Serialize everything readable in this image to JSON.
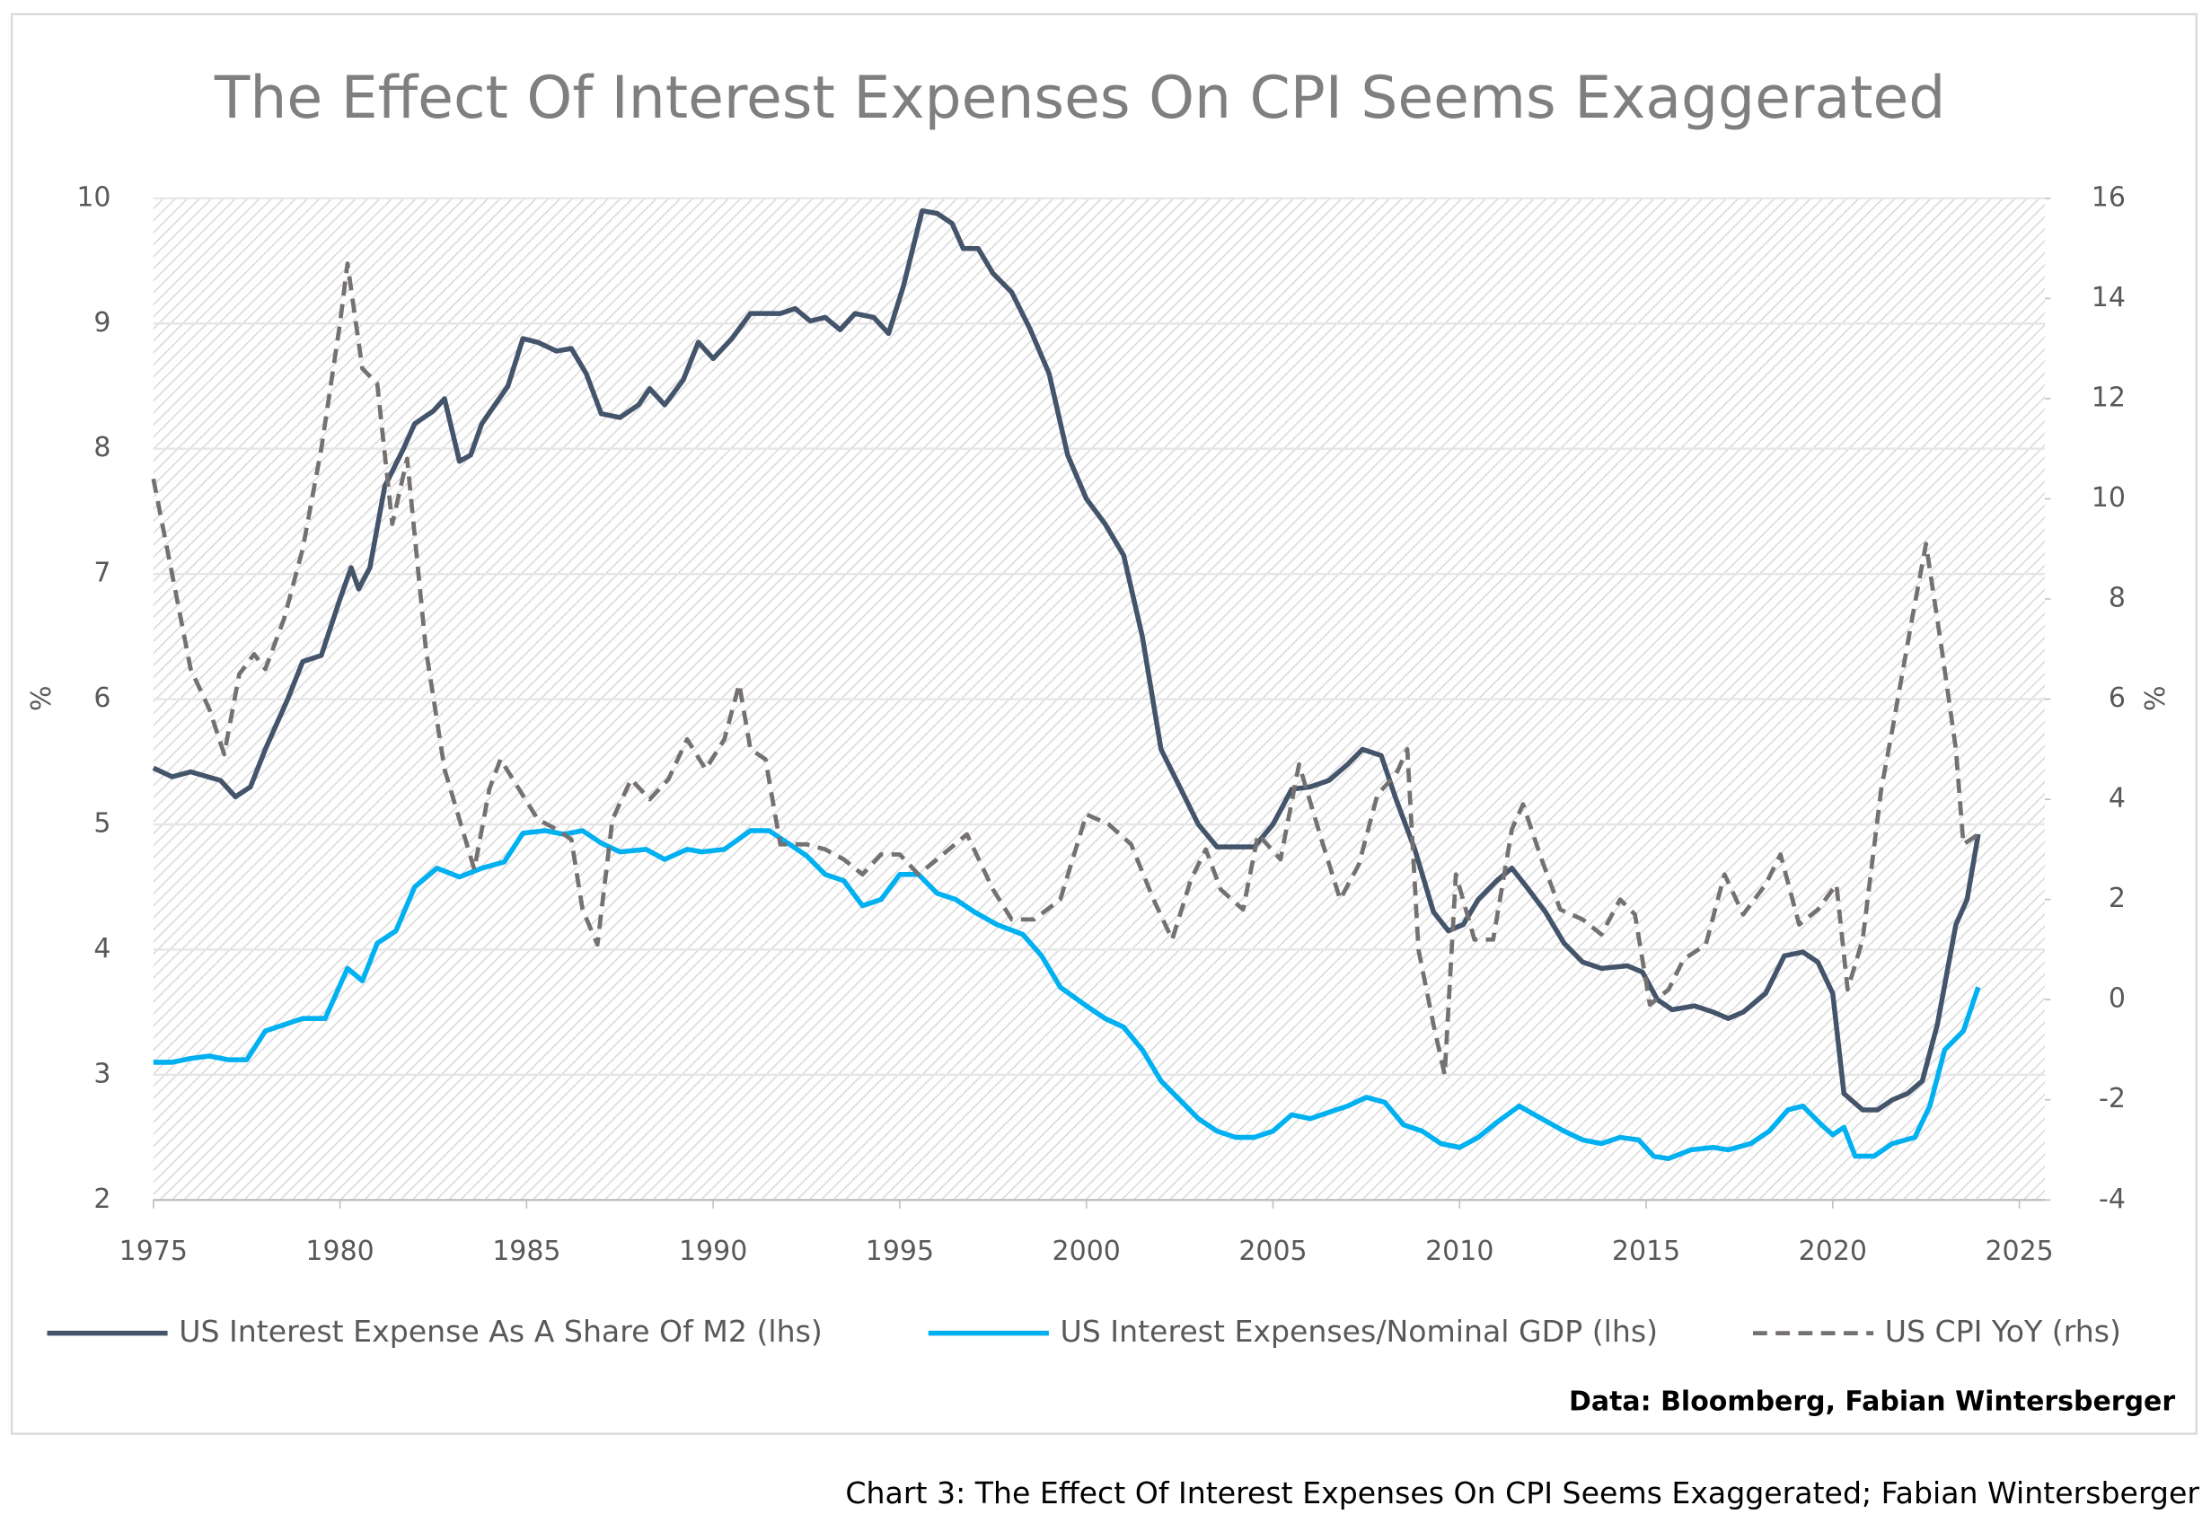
{
  "chart_data": {
    "type": "line",
    "title": "The Effect Of Interest Expenses On CPI Seems Exaggerated",
    "ylabel": "%",
    "y2label": "%",
    "source": "Data: Bloomberg, Fabian Wintersberger",
    "caption": "Chart 3: The Effect Of Interest Expenses On CPI Seems Exaggerated; Fabian Wintersberger",
    "xlim": [
      1975,
      2025
    ],
    "xticks": [
      1975,
      1980,
      1985,
      1990,
      1995,
      2000,
      2005,
      2010,
      2015,
      2020,
      2025
    ],
    "ylim": [
      2,
      10
    ],
    "yticks": [
      2,
      3,
      4,
      5,
      6,
      7,
      8,
      9,
      10
    ],
    "y2lim": [
      -4,
      16
    ],
    "y2ticks": [
      -4,
      -2,
      0,
      2,
      4,
      6,
      8,
      10,
      12,
      14,
      16
    ],
    "grid": true,
    "legend": "bottom",
    "series": [
      {
        "name": "US Interest Expense As A Share Of M2 (lhs)",
        "color": "#44546a",
        "dash": false,
        "x": [
          1975,
          1975.5,
          1976,
          1976.8,
          1977.2,
          1977.6,
          1978,
          1978.6,
          1979,
          1979.5,
          1980,
          1980.3,
          1980.5,
          1980.8,
          1981.2,
          1981.7,
          1982,
          1982.5,
          1982.8,
          1983.2,
          1983.5,
          1983.8,
          1984.5,
          1984.9,
          1985.3,
          1985.8,
          1986.2,
          1986.6,
          1987,
          1987.5,
          1988,
          1988.3,
          1988.7,
          1989.2,
          1989.6,
          1990,
          1990.5,
          1991,
          1991.8,
          1992.2,
          1992.6,
          1993,
          1993.4,
          1993.8,
          1994.3,
          1994.7,
          1995.1,
          1995.6,
          1996,
          1996.4,
          1996.7,
          1997.1,
          1997.5,
          1998,
          1998.5,
          1999,
          1999.5,
          2000,
          2000.5,
          2001,
          2001.5,
          2002,
          2002.5,
          2003,
          2003.5,
          2004,
          2004.5,
          2005,
          2005.5,
          2006,
          2006.5,
          2007,
          2007.4,
          2007.9,
          2008.3,
          2008.8,
          2009.3,
          2009.7,
          2010.1,
          2010.5,
          2011,
          2011.4,
          2011.8,
          2012.3,
          2012.8,
          2013.3,
          2013.8,
          2014.5,
          2014.9,
          2015.3,
          2015.7,
          2016.3,
          2016.8,
          2017.2,
          2017.6,
          2018.2,
          2018.7,
          2019.2,
          2019.6,
          2020,
          2020.3,
          2020.8,
          2021.2,
          2021.6,
          2022,
          2022.4,
          2022.8,
          2023.3,
          2023.6,
          2023.9
        ],
        "values": [
          5.45,
          5.38,
          5.42,
          5.35,
          5.22,
          5.3,
          5.6,
          6.0,
          6.3,
          6.35,
          6.8,
          7.05,
          6.88,
          7.05,
          7.7,
          8.0,
          8.2,
          8.3,
          8.4,
          7.9,
          7.95,
          8.2,
          8.5,
          8.88,
          8.85,
          8.78,
          8.8,
          8.6,
          8.28,
          8.25,
          8.35,
          8.48,
          8.35,
          8.55,
          8.85,
          8.72,
          8.88,
          9.08,
          9.08,
          9.12,
          9.02,
          9.05,
          8.95,
          9.08,
          9.05,
          8.92,
          9.3,
          9.9,
          9.88,
          9.8,
          9.6,
          9.6,
          9.4,
          9.25,
          8.95,
          8.6,
          7.95,
          7.6,
          7.4,
          7.15,
          6.5,
          5.6,
          5.3,
          5.0,
          4.82,
          4.82,
          4.82,
          5.0,
          5.28,
          5.3,
          5.35,
          5.48,
          5.6,
          5.55,
          5.2,
          4.8,
          4.3,
          4.15,
          4.2,
          4.4,
          4.55,
          4.65,
          4.5,
          4.3,
          4.05,
          3.9,
          3.85,
          3.87,
          3.82,
          3.6,
          3.52,
          3.55,
          3.5,
          3.45,
          3.5,
          3.65,
          3.95,
          3.98,
          3.9,
          3.65,
          2.85,
          2.72,
          2.72,
          2.8,
          2.85,
          2.95,
          3.4,
          4.2,
          4.4,
          4.92
        ]
      },
      {
        "name": "US Interest Expenses/Nominal GDP (lhs)",
        "color": "#00b0f0",
        "dash": false,
        "x": [
          1975,
          1975.5,
          1976,
          1976.5,
          1977,
          1977.5,
          1978,
          1978.5,
          1979,
          1979.6,
          1980.2,
          1980.6,
          1981,
          1981.5,
          1982,
          1982.6,
          1983.2,
          1983.8,
          1984.4,
          1984.9,
          1985.5,
          1986,
          1986.5,
          1987,
          1987.5,
          1988.2,
          1988.7,
          1989.3,
          1989.7,
          1990.3,
          1991,
          1991.5,
          1992,
          1992.5,
          1993,
          1993.5,
          1994,
          1994.5,
          1995,
          1995.5,
          1996,
          1996.5,
          1997,
          1997.6,
          1998.3,
          1998.8,
          1999.3,
          2000,
          2000.5,
          2001,
          2001.5,
          2002,
          2002.5,
          2003,
          2003.5,
          2004,
          2004.5,
          2005,
          2005.5,
          2006,
          2006.5,
          2007,
          2007.5,
          2008,
          2008.5,
          2009,
          2009.5,
          2010,
          2010.5,
          2011,
          2011.6,
          2012.2,
          2012.8,
          2013.3,
          2013.8,
          2014.3,
          2014.8,
          2015.2,
          2015.6,
          2016.2,
          2016.8,
          2017.2,
          2017.8,
          2018.3,
          2018.8,
          2019.2,
          2019.7,
          2020,
          2020.3,
          2020.6,
          2021.1,
          2021.6,
          2022.2,
          2022.6,
          2023,
          2023.5,
          2023.9
        ],
        "values": [
          3.1,
          3.1,
          3.13,
          3.15,
          3.12,
          3.12,
          3.35,
          3.4,
          3.45,
          3.45,
          3.85,
          3.75,
          4.05,
          4.15,
          4.5,
          4.65,
          4.58,
          4.65,
          4.7,
          4.93,
          4.95,
          4.92,
          4.95,
          4.85,
          4.78,
          4.8,
          4.72,
          4.8,
          4.78,
          4.8,
          4.95,
          4.95,
          4.85,
          4.75,
          4.6,
          4.55,
          4.35,
          4.4,
          4.6,
          4.6,
          4.45,
          4.4,
          4.3,
          4.2,
          4.12,
          3.95,
          3.7,
          3.55,
          3.45,
          3.38,
          3.2,
          2.95,
          2.8,
          2.65,
          2.55,
          2.5,
          2.5,
          2.55,
          2.68,
          2.65,
          2.7,
          2.75,
          2.82,
          2.78,
          2.6,
          2.55,
          2.45,
          2.42,
          2.5,
          2.62,
          2.75,
          2.65,
          2.55,
          2.48,
          2.45,
          2.5,
          2.48,
          2.35,
          2.33,
          2.4,
          2.42,
          2.4,
          2.45,
          2.55,
          2.72,
          2.75,
          2.6,
          2.52,
          2.58,
          2.35,
          2.35,
          2.45,
          2.5,
          2.75,
          3.2,
          3.35,
          3.7
        ]
      },
      {
        "name": "US CPI YoY (rhs)",
        "color": "#767171",
        "dash": true,
        "axis": "y2",
        "x": [
          1975,
          1975.5,
          1976,
          1976.5,
          1976.9,
          1977.3,
          1977.7,
          1978,
          1978.5,
          1979,
          1979.5,
          1980,
          1980.2,
          1980.6,
          1981,
          1981.4,
          1981.8,
          1982.3,
          1982.8,
          1983.2,
          1983.6,
          1984,
          1984.3,
          1984.8,
          1985.3,
          1985.8,
          1986.2,
          1986.5,
          1986.9,
          1987.3,
          1987.8,
          1988.3,
          1988.8,
          1989.3,
          1989.8,
          1990.3,
          1990.7,
          1991,
          1991.4,
          1991.8,
          1992.5,
          1993,
          1993.5,
          1994,
          1994.5,
          1995,
          1995.5,
          1996,
          1996.8,
          1997.5,
          1998,
          1998.6,
          1999.3,
          2000,
          2000.6,
          2001.2,
          2001.8,
          2002.3,
          2002.8,
          2003.2,
          2003.6,
          2004.2,
          2004.6,
          2005.2,
          2005.7,
          2006.3,
          2006.8,
          2007.3,
          2007.8,
          2008.3,
          2008.6,
          2008.9,
          2009.3,
          2009.6,
          2009.9,
          2010.4,
          2010.9,
          2011.4,
          2011.7,
          2012.2,
          2012.7,
          2013.3,
          2013.8,
          2014.3,
          2014.7,
          2015.1,
          2015.6,
          2016,
          2016.6,
          2017.1,
          2017.6,
          2018.2,
          2018.6,
          2019.1,
          2019.6,
          2020.1,
          2020.4,
          2020.8,
          2021.3,
          2021.6,
          2022.1,
          2022.5,
          2022.9,
          2023.3,
          2023.5,
          2023.9
        ],
        "values": [
          10.4,
          8.5,
          6.6,
          5.8,
          4.9,
          6.5,
          6.9,
          6.6,
          7.6,
          9.0,
          11.0,
          13.5,
          14.7,
          12.6,
          12.3,
          9.5,
          10.8,
          7.0,
          4.6,
          3.6,
          2.6,
          4.2,
          4.8,
          4.2,
          3.6,
          3.4,
          3.2,
          1.8,
          1.1,
          3.6,
          4.4,
          4.0,
          4.4,
          5.2,
          4.6,
          5.2,
          6.3,
          5.0,
          4.8,
          3.1,
          3.1,
          3.0,
          2.8,
          2.5,
          2.9,
          2.9,
          2.5,
          2.8,
          3.3,
          2.2,
          1.6,
          1.6,
          2.0,
          3.7,
          3.5,
          3.1,
          2.0,
          1.2,
          2.4,
          3.0,
          2.2,
          1.8,
          3.3,
          2.8,
          4.7,
          3.2,
          2.0,
          2.7,
          4.1,
          4.5,
          5.0,
          1.0,
          -0.5,
          -1.5,
          2.5,
          1.2,
          1.2,
          3.4,
          3.9,
          2.8,
          1.8,
          1.6,
          1.3,
          2.0,
          1.7,
          -0.1,
          0.2,
          0.8,
          1.1,
          2.5,
          1.7,
          2.3,
          2.9,
          1.5,
          1.8,
          2.3,
          0.2,
          1.2,
          4.2,
          5.4,
          7.5,
          9.1,
          7.1,
          5.0,
          3.1,
          3.3
        ]
      }
    ]
  }
}
